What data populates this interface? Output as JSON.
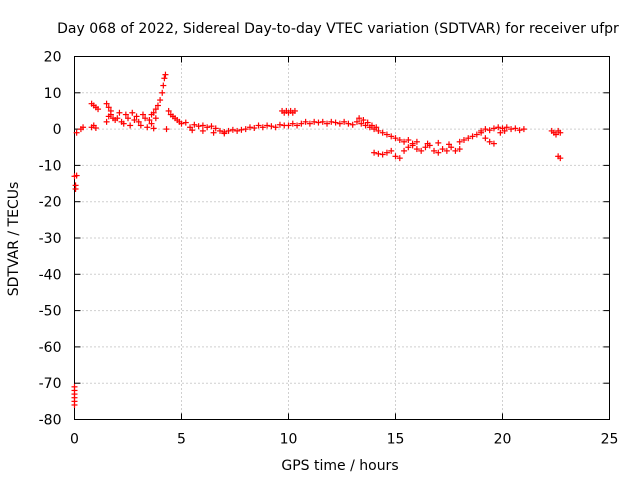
{
  "chart_data": {
    "type": "scatter",
    "title": "Day 068 of 2022, Sidereal Day-to-day VTEC variation (SDTVAR) for receiver ufpr",
    "xlabel": "GPS time / hours",
    "ylabel": "SDTVAR / TECUs",
    "xlim": [
      0,
      25
    ],
    "ylim": [
      -80,
      20
    ],
    "xticks": [
      0,
      5,
      10,
      15,
      20,
      25
    ],
    "yticks": [
      20,
      10,
      0,
      -10,
      -20,
      -30,
      -40,
      -50,
      -60,
      -70,
      -80
    ],
    "grid": true,
    "marker": "plus",
    "color": "#ff0000",
    "series": [
      {
        "name": "SDTVAR",
        "points": [
          [
            0.0,
            -13
          ],
          [
            0.05,
            -15.5
          ],
          [
            0.05,
            -16.5
          ],
          [
            0.1,
            -12.8
          ],
          [
            0.0,
            -71
          ],
          [
            0.0,
            -72
          ],
          [
            0.0,
            -73
          ],
          [
            0.0,
            -74
          ],
          [
            0.0,
            -75
          ],
          [
            0.0,
            -76
          ],
          [
            0.1,
            -1
          ],
          [
            0.3,
            0
          ],
          [
            0.4,
            0.5
          ],
          [
            0.8,
            0.5
          ],
          [
            0.9,
            1
          ],
          [
            1.0,
            0.3
          ],
          [
            0.8,
            7
          ],
          [
            0.9,
            6.5
          ],
          [
            1.0,
            6
          ],
          [
            1.1,
            5.5
          ],
          [
            1.5,
            7
          ],
          [
            1.6,
            6
          ],
          [
            1.7,
            5
          ],
          [
            1.5,
            2
          ],
          [
            1.6,
            3.5
          ],
          [
            1.7,
            4
          ],
          [
            1.8,
            3
          ],
          [
            1.9,
            2.5
          ],
          [
            2.0,
            3
          ],
          [
            2.1,
            4.5
          ],
          [
            2.2,
            2
          ],
          [
            2.3,
            1.5
          ],
          [
            2.4,
            4
          ],
          [
            2.5,
            3
          ],
          [
            2.6,
            1
          ],
          [
            2.7,
            4.5
          ],
          [
            2.8,
            2.5
          ],
          [
            2.9,
            3.5
          ],
          [
            3.0,
            2
          ],
          [
            3.1,
            1
          ],
          [
            3.2,
            4
          ],
          [
            3.3,
            3
          ],
          [
            3.4,
            0.5
          ],
          [
            3.5,
            2.5
          ],
          [
            3.6,
            1.5
          ],
          [
            3.7,
            0.2
          ],
          [
            3.8,
            3
          ],
          [
            3.6,
            4
          ],
          [
            3.7,
            4.5
          ],
          [
            3.8,
            5.5
          ],
          [
            3.9,
            6.5
          ],
          [
            4.0,
            8
          ],
          [
            4.1,
            10
          ],
          [
            4.15,
            12
          ],
          [
            4.2,
            14
          ],
          [
            4.25,
            15
          ],
          [
            4.3,
            0
          ],
          [
            4.4,
            5
          ],
          [
            4.5,
            4
          ],
          [
            4.6,
            3.5
          ],
          [
            4.7,
            3
          ],
          [
            4.8,
            2.5
          ],
          [
            4.9,
            2
          ],
          [
            5.0,
            1.5
          ],
          [
            5.2,
            1.8
          ],
          [
            5.4,
            0.5
          ],
          [
            5.6,
            1.2
          ],
          [
            5.8,
            0.8
          ],
          [
            6.0,
            1
          ],
          [
            6.2,
            0.5
          ],
          [
            6.4,
            0.8
          ],
          [
            6.6,
            0.2
          ],
          [
            6.8,
            -0.5
          ],
          [
            7.0,
            -0.8
          ],
          [
            7.2,
            -0.5
          ],
          [
            7.4,
            -0.2
          ],
          [
            7.6,
            -0.5
          ],
          [
            7.8,
            -0.2
          ],
          [
            5.5,
            -0.3
          ],
          [
            6.0,
            -0.5
          ],
          [
            6.5,
            -1
          ],
          [
            7.0,
            -1.2
          ],
          [
            8.0,
            0
          ],
          [
            8.2,
            0.5
          ],
          [
            8.4,
            0.3
          ],
          [
            8.6,
            1
          ],
          [
            8.8,
            0.5
          ],
          [
            9.0,
            1
          ],
          [
            9.2,
            0.8
          ],
          [
            9.4,
            0.5
          ],
          [
            9.6,
            1.2
          ],
          [
            9.8,
            1
          ],
          [
            9.7,
            5
          ],
          [
            9.8,
            4.5
          ],
          [
            9.9,
            5
          ],
          [
            10.0,
            4.5
          ],
          [
            10.1,
            5
          ],
          [
            10.2,
            4.5
          ],
          [
            10.3,
            5
          ],
          [
            10.0,
            1
          ],
          [
            10.2,
            1.5
          ],
          [
            10.4,
            1
          ],
          [
            10.6,
            1.5
          ],
          [
            10.8,
            2
          ],
          [
            11.0,
            1.5
          ],
          [
            11.2,
            2
          ],
          [
            11.4,
            1.8
          ],
          [
            11.6,
            2
          ],
          [
            11.8,
            1.5
          ],
          [
            12.0,
            2
          ],
          [
            12.2,
            1.8
          ],
          [
            12.4,
            1.5
          ],
          [
            12.6,
            2
          ],
          [
            12.8,
            1.5
          ],
          [
            13.0,
            1.2
          ],
          [
            13.2,
            2
          ],
          [
            13.4,
            1.5
          ],
          [
            13.6,
            1
          ],
          [
            13.8,
            0.5
          ],
          [
            14.0,
            0
          ],
          [
            14.2,
            -0.5
          ],
          [
            14.4,
            -1
          ],
          [
            13.3,
            3
          ],
          [
            13.5,
            2.5
          ],
          [
            13.7,
            1.8
          ],
          [
            13.9,
            1
          ],
          [
            14.1,
            0.5
          ],
          [
            14.6,
            -1.5
          ],
          [
            14.8,
            -2
          ],
          [
            15.0,
            -2.5
          ],
          [
            15.2,
            -3
          ],
          [
            15.4,
            -3.5
          ],
          [
            15.6,
            -3
          ],
          [
            15.8,
            -4
          ],
          [
            14.0,
            -6.5
          ],
          [
            14.2,
            -6.8
          ],
          [
            14.4,
            -7
          ],
          [
            14.6,
            -6.5
          ],
          [
            14.8,
            -6
          ],
          [
            15.0,
            -7.5
          ],
          [
            15.2,
            -8
          ],
          [
            15.4,
            -6
          ],
          [
            15.6,
            -5
          ],
          [
            15.8,
            -4.5
          ],
          [
            16.0,
            -5.5
          ],
          [
            16.2,
            -6
          ],
          [
            16.4,
            -5
          ],
          [
            16.6,
            -4.5
          ],
          [
            16.8,
            -6
          ],
          [
            17.0,
            -6.5
          ],
          [
            17.2,
            -5.5
          ],
          [
            17.4,
            -6
          ],
          [
            17.6,
            -5
          ],
          [
            17.8,
            -6
          ],
          [
            18.0,
            -5.5
          ],
          [
            16.0,
            -3.5
          ],
          [
            16.5,
            -4
          ],
          [
            17.0,
            -3.8
          ],
          [
            17.5,
            -4.2
          ],
          [
            18.0,
            -3.5
          ],
          [
            18.2,
            -3
          ],
          [
            18.4,
            -2.5
          ],
          [
            18.6,
            -2
          ],
          [
            18.8,
            -1.5
          ],
          [
            19.0,
            -1
          ],
          [
            19.2,
            -2.5
          ],
          [
            19.4,
            -3.5
          ],
          [
            19.6,
            -4
          ],
          [
            19.0,
            -0.5
          ],
          [
            19.2,
            0
          ],
          [
            19.4,
            -0.3
          ],
          [
            19.6,
            0.2
          ],
          [
            19.8,
            0.5
          ],
          [
            20.0,
            0.2
          ],
          [
            20.2,
            0.5
          ],
          [
            20.4,
            0
          ],
          [
            20.6,
            0.2
          ],
          [
            20.8,
            -0.3
          ],
          [
            21.0,
            0
          ],
          [
            19.9,
            -1
          ],
          [
            20.1,
            -0.5
          ],
          [
            22.3,
            -0.5
          ],
          [
            22.4,
            -1
          ],
          [
            22.5,
            -1.5
          ],
          [
            22.6,
            -0.5
          ],
          [
            22.7,
            -1
          ],
          [
            22.6,
            -7.5
          ],
          [
            22.7,
            -8
          ]
        ]
      }
    ]
  }
}
